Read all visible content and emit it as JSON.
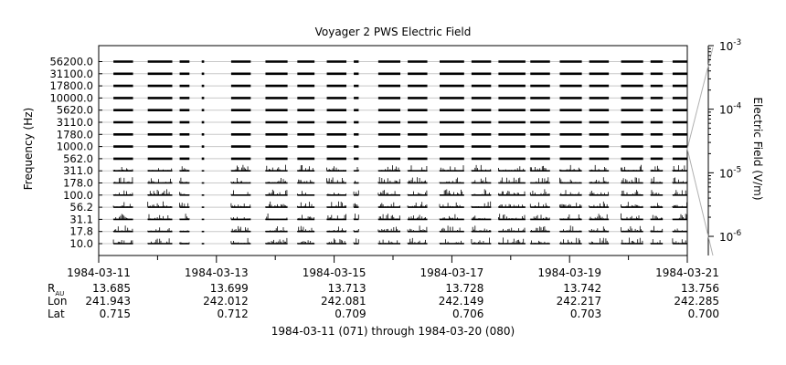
{
  "chart_data": {
    "type": "line",
    "title": "Voyager 2 PWS Electric Field",
    "ylabel": "Frequency (Hz)",
    "colorbar_label": "Electric Field (V/m)",
    "colorbar_range": [
      5e-07,
      0.001
    ],
    "colorbar_ticks": [
      {
        "label": "10",
        "exp": "-3",
        "value": 0.001
      },
      {
        "label": "10",
        "exp": "-4",
        "value": 0.0001
      },
      {
        "label": "10",
        "exp": "-5",
        "value": 1e-05
      },
      {
        "label": "10",
        "exp": "-6",
        "value": 1e-06
      }
    ],
    "x_range": [
      "1984-03-11",
      "1984-03-21"
    ],
    "x_ticks": [
      "1984-03-11",
      "1984-03-13",
      "1984-03-15",
      "1984-03-17",
      "1984-03-19",
      "1984-03-21"
    ],
    "channels": [
      "56200.0",
      "31100.0",
      "17800.0",
      "10000.0",
      "5620.0",
      "3110.0",
      "1780.0",
      "1000.0",
      "562.0",
      "311.0",
      "178.0",
      "100.0",
      "56.2",
      "31.1",
      "17.8",
      "10.0"
    ],
    "data_segments": [
      {
        "start": "1984-03-11T06:00",
        "end": "1984-03-11T14:00"
      },
      {
        "start": "1984-03-11T20:00",
        "end": "1984-03-12T06:00"
      },
      {
        "start": "1984-03-12T09:00",
        "end": "1984-03-12T13:00"
      },
      {
        "start": "1984-03-12T18:00",
        "end": "1984-03-12T19:00"
      },
      {
        "start": "1984-03-13T06:00",
        "end": "1984-03-13T14:00"
      },
      {
        "start": "1984-03-13T20:00",
        "end": "1984-03-14T05:00"
      },
      {
        "start": "1984-03-14T09:00",
        "end": "1984-03-14T16:00"
      },
      {
        "start": "1984-03-14T21:00",
        "end": "1984-03-15T05:00"
      },
      {
        "start": "1984-03-15T08:00",
        "end": "1984-03-15T10:00"
      },
      {
        "start": "1984-03-15T18:00",
        "end": "1984-03-16T03:00"
      },
      {
        "start": "1984-03-16T06:00",
        "end": "1984-03-16T14:00"
      },
      {
        "start": "1984-03-16T19:00",
        "end": "1984-03-17T05:00"
      },
      {
        "start": "1984-03-17T08:00",
        "end": "1984-03-17T16:00"
      },
      {
        "start": "1984-03-17T19:00",
        "end": "1984-03-18T06:00"
      },
      {
        "start": "1984-03-18T08:00",
        "end": "1984-03-18T16:00"
      },
      {
        "start": "1984-03-18T20:00",
        "end": "1984-03-19T05:00"
      },
      {
        "start": "1984-03-19T08:00",
        "end": "1984-03-19T16:00"
      },
      {
        "start": "1984-03-19T21:00",
        "end": "1984-03-20T06:00"
      },
      {
        "start": "1984-03-20T09:00",
        "end": "1984-03-20T14:00"
      },
      {
        "start": "1984-03-20T18:00",
        "end": "1984-03-21T00:00"
      }
    ],
    "ephemeris_rows": [
      {
        "label": "R",
        "sub": "AU",
        "values": [
          "13.685",
          "13.699",
          "13.713",
          "13.728",
          "13.742",
          "13.756"
        ]
      },
      {
        "label": "Lon",
        "sub": "",
        "values": [
          "241.943",
          "242.012",
          "242.081",
          "242.149",
          "242.217",
          "242.285"
        ]
      },
      {
        "label": "Lat",
        "sub": "",
        "values": [
          "0.715",
          "0.712",
          "0.709",
          "0.706",
          "0.703",
          "0.700"
        ]
      }
    ],
    "footer": "1984-03-11 (071) through 1984-03-20 (080)"
  }
}
